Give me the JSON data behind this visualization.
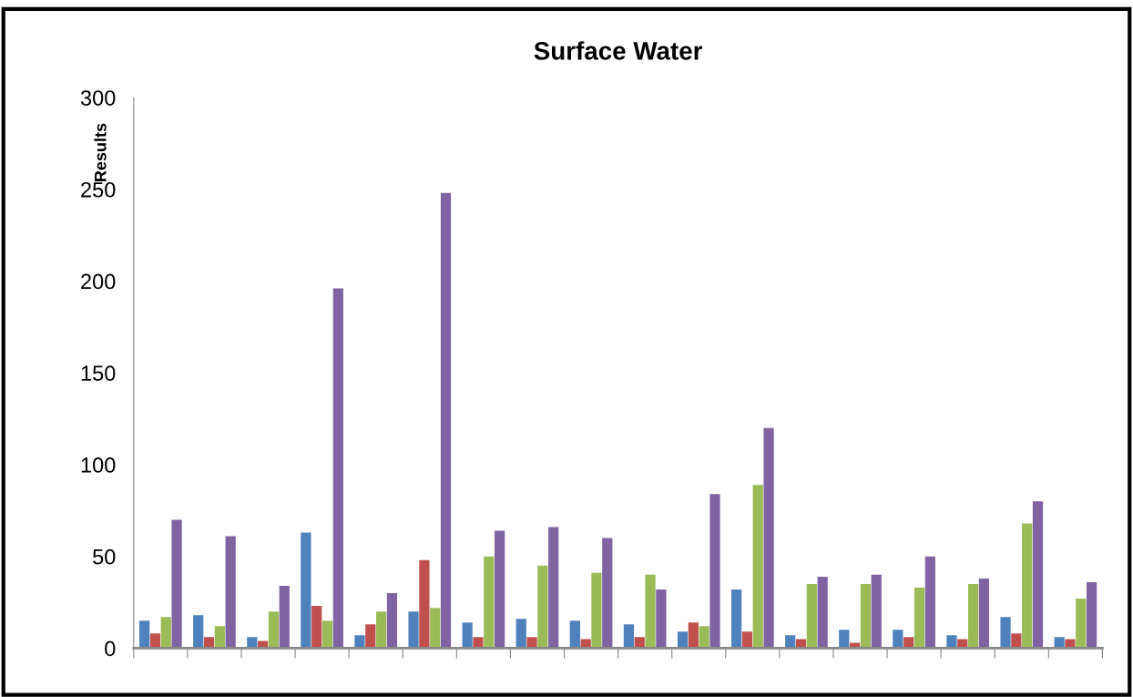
{
  "chart_data": {
    "type": "bar",
    "title": "Surface Water",
    "ylabel": "Results",
    "categories": [
      null,
      null,
      null,
      null,
      null,
      null,
      null,
      null,
      null,
      null,
      null,
      null,
      null,
      null,
      null,
      null,
      null,
      null
    ],
    "series": [
      {
        "color": "#4f81bd",
        "values": [
          15,
          18,
          6,
          63,
          7,
          20,
          14,
          16,
          15,
          13,
          9,
          32,
          7,
          10,
          10,
          7,
          17,
          6
        ]
      },
      {
        "color": "#c0504d",
        "values": [
          8,
          6,
          4,
          23,
          13,
          48,
          6,
          6,
          5,
          6,
          14,
          9,
          5,
          3,
          6,
          5,
          8,
          5
        ]
      },
      {
        "color": "#9bbb59",
        "values": [
          17,
          12,
          20,
          15,
          20,
          22,
          50,
          45,
          41,
          40,
          12,
          89,
          35,
          35,
          33,
          35,
          68,
          27
        ]
      },
      {
        "color": "#8064a2",
        "values": [
          70,
          61,
          34,
          196,
          30,
          248,
          64,
          66,
          60,
          32,
          84,
          120,
          39,
          40,
          50,
          38,
          80,
          36
        ]
      }
    ],
    "ylim": [
      0,
      300
    ],
    "yticks": [
      0,
      50,
      100,
      150,
      200,
      250,
      300
    ],
    "grid": false,
    "legend": false
  }
}
